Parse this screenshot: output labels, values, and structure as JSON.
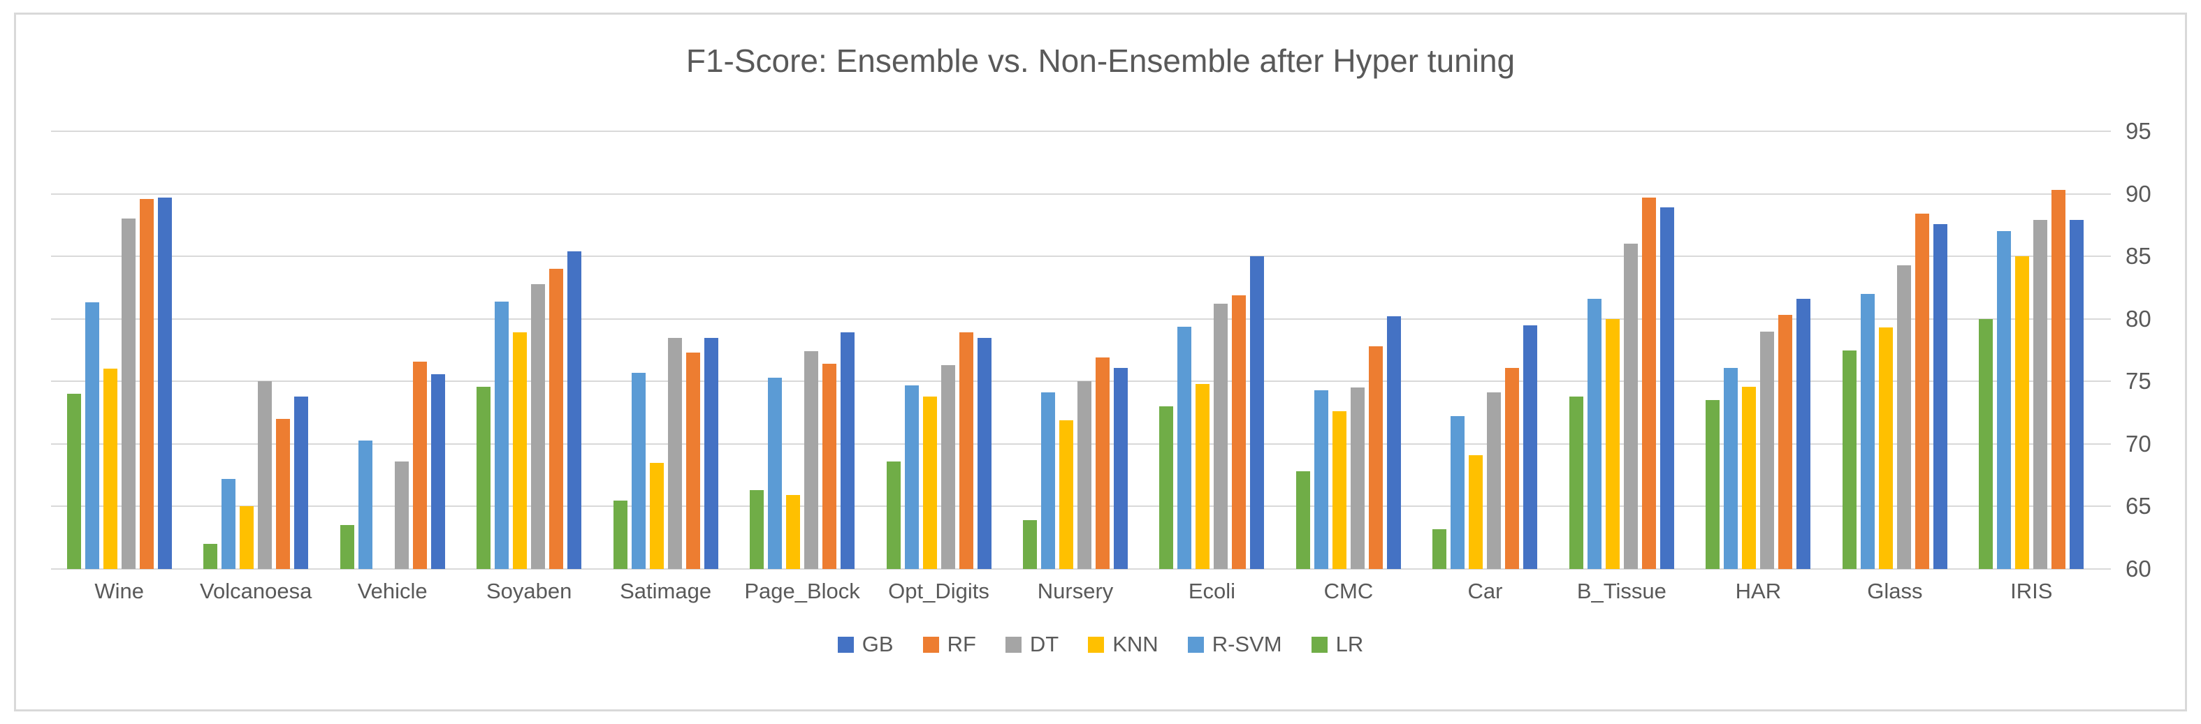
{
  "window": {
    "background_color": "#ffffff",
    "frame_border_color": "#d9d9d9",
    "text_color": "#595959",
    "gridline_color": "#d9d9d9"
  },
  "chart_data": {
    "type": "bar",
    "title": "F1-Score: Ensemble vs. Non-Ensemble after Hyper tuning",
    "categories": [
      "Wine",
      "Volcanoesa",
      "Vehicle",
      "Soyaben",
      "Satimage",
      "Page_Block",
      "Opt_Digits",
      "Nursery",
      "Ecoli",
      "CMC",
      "Car",
      "B_Tissue",
      "HAR",
      "Glass",
      "IRIS"
    ],
    "series": [
      {
        "name": "LR",
        "color": "#70AD47",
        "values": [
          74.0,
          62.0,
          63.5,
          74.6,
          65.5,
          66.3,
          68.6,
          63.9,
          73.0,
          67.8,
          63.2,
          73.8,
          73.5,
          77.5,
          80.0
        ]
      },
      {
        "name": "R-SVM",
        "color": "#5B9BD5",
        "values": [
          81.3,
          67.2,
          70.3,
          81.4,
          75.7,
          75.3,
          74.7,
          74.1,
          79.4,
          74.3,
          72.2,
          81.6,
          76.1,
          82.0,
          87.0
        ]
      },
      {
        "name": "KNN",
        "color": "#FFC000",
        "values": [
          76.0,
          65.0,
          null,
          78.9,
          68.5,
          65.9,
          73.8,
          71.9,
          74.8,
          72.6,
          69.1,
          80.0,
          74.6,
          79.3,
          85.0
        ]
      },
      {
        "name": "DT",
        "color": "#A5A5A5",
        "values": [
          88.0,
          75.0,
          68.6,
          82.8,
          78.5,
          77.4,
          76.3,
          75.0,
          81.2,
          74.5,
          74.1,
          86.0,
          79.0,
          84.3,
          87.9
        ]
      },
      {
        "name": "RF",
        "color": "#ED7D31",
        "values": [
          89.6,
          72.0,
          76.6,
          84.0,
          77.3,
          76.4,
          78.9,
          76.9,
          81.9,
          77.8,
          76.1,
          89.7,
          80.3,
          88.4,
          90.3
        ]
      },
      {
        "name": "GB",
        "color": "#4472C4",
        "values": [
          89.7,
          73.8,
          75.6,
          85.4,
          78.5,
          78.9,
          78.5,
          76.1,
          85.0,
          80.2,
          79.5,
          88.9,
          81.6,
          87.6,
          87.9
        ]
      }
    ],
    "legend_order": [
      "GB",
      "RF",
      "DT",
      "KNN",
      "R-SVM",
      "LR"
    ],
    "legend_position": "bottom",
    "grid": true,
    "y_axis": {
      "side": "right",
      "min": 60,
      "max": 95,
      "step": 5,
      "ticks": [
        95,
        90,
        85,
        80,
        75,
        70,
        65,
        60
      ]
    },
    "xlabel": "",
    "ylabel": ""
  }
}
